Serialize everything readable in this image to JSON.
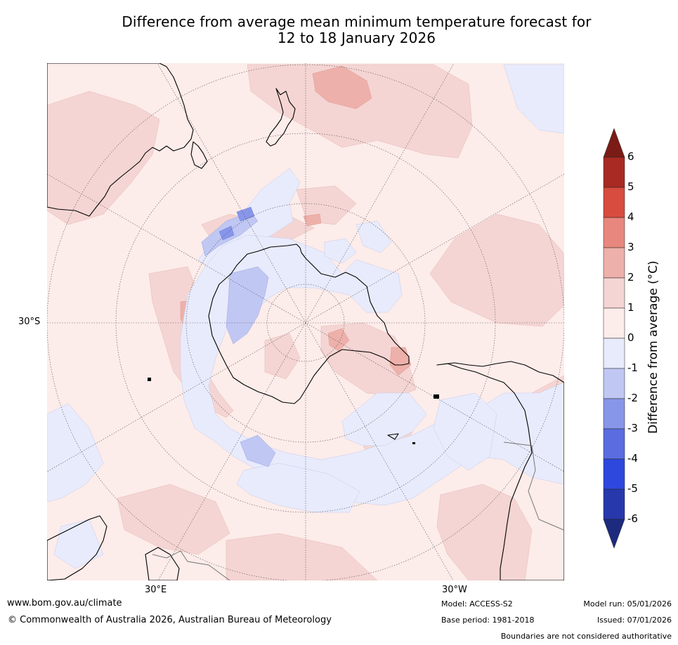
{
  "title": {
    "line1": "Difference from average mean minimum temperature forecast for",
    "line2": "12 to 18 January 2026"
  },
  "map": {
    "projection": "south-polar-stereographic",
    "lat_label": "30°S",
    "lon_label_east": "30°E",
    "lon_label_west": "30°W"
  },
  "colorbar": {
    "title": "Difference from average (°C)",
    "ticks": [
      "6",
      "5",
      "4",
      "3",
      "2",
      "1",
      "0",
      "-1",
      "-2",
      "-3",
      "-4",
      "-5",
      "-6"
    ],
    "bins": [
      {
        "range": ">6",
        "color": "#7a1c15"
      },
      {
        "range": "5 to 6",
        "color": "#a92a22"
      },
      {
        "range": "4 to 5",
        "color": "#d84b3f"
      },
      {
        "range": "3 to 4",
        "color": "#e8877d"
      },
      {
        "range": "2 to 3",
        "color": "#eeb0aa"
      },
      {
        "range": "1 to 2",
        "color": "#f4d5d3"
      },
      {
        "range": "0 to 1",
        "color": "#fcecea"
      },
      {
        "range": "-1 to 0",
        "color": "#e8ebfc"
      },
      {
        "range": "-2 to -1",
        "color": "#c0c7f3"
      },
      {
        "range": "-3 to -2",
        "color": "#8896ea"
      },
      {
        "range": "-4 to -3",
        "color": "#5a6ce0"
      },
      {
        "range": "-5 to -4",
        "color": "#2e48de"
      },
      {
        "range": "-6 to -5",
        "color": "#2738ac"
      },
      {
        "range": "<-6",
        "color": "#1d2a7e"
      }
    ]
  },
  "footer": {
    "website": "www.bom.gov.au/climate",
    "copyright": "© Commonwealth of Australia 2026, Australian Bureau of Meteorology",
    "model": "Model: ACCESS-S2",
    "base_period": "Base period: 1981-2018",
    "model_run": "Model run: 05/01/2026",
    "issued": "Issued: 07/01/2026",
    "disclaimer": "Boundaries are not considered authoritative"
  }
}
